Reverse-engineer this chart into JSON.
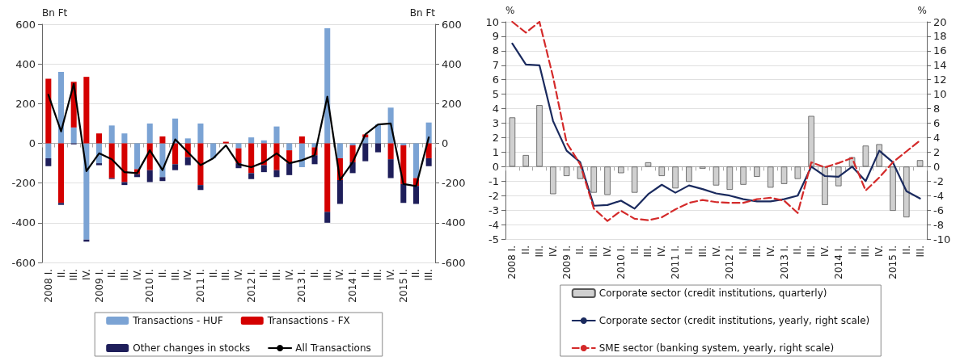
{
  "chart_data": [
    {
      "type": "bar",
      "stacked": true,
      "ylabel": "Bn Ft",
      "y2label": "Bn Ft",
      "ylim": [
        -600,
        600
      ],
      "yticks": [
        -600,
        -400,
        -200,
        0,
        200,
        400,
        600
      ],
      "y2lim": [
        -600,
        600
      ],
      "y2ticks": [
        -600,
        -400,
        -200,
        0,
        200,
        400,
        600
      ],
      "grid": "y",
      "legend": "bottom",
      "marker": "none",
      "categories": [
        "2008 I.",
        "II.",
        "III.",
        "IV.",
        "2009 I.",
        "II.",
        "III.",
        "IV.",
        "2010 I.",
        "II.",
        "III.",
        "IV.",
        "2011 I.",
        "II.",
        "III.",
        "IV.",
        "2012 I.",
        "II.",
        "III.",
        "IV.",
        "2013 I.",
        "II.",
        "III.",
        "IV.",
        "2014 I.",
        "II.",
        "III.",
        "IV.",
        "2015 I.",
        "II.",
        "III."
      ],
      "series": [
        {
          "name": "Transactions - HUF",
          "color": "#7ba3d4",
          "values": [
            -75,
            360,
            80,
            -485,
            -100,
            90,
            50,
            -130,
            100,
            -170,
            125,
            25,
            100,
            -75,
            0,
            -25,
            30,
            15,
            85,
            -35,
            -120,
            -20,
            580,
            -75,
            -10,
            30,
            95,
            180,
            -10,
            -175,
            105
          ]
        },
        {
          "name": "Transactions - FX",
          "color": "#d40000",
          "values": [
            325,
            -300,
            230,
            335,
            50,
            -175,
            -195,
            -25,
            -135,
            35,
            -105,
            -70,
            -210,
            0,
            8,
            -75,
            -150,
            -110,
            -135,
            -65,
            35,
            -40,
            -345,
            -110,
            -85,
            15,
            0,
            -80,
            -195,
            -40,
            -75
          ]
        },
        {
          "name": "Other changes in stocks",
          "color": "#1e1e5a",
          "values": [
            -40,
            -10,
            -5,
            -10,
            -10,
            -5,
            -15,
            -15,
            -60,
            -20,
            -30,
            -40,
            -25,
            null,
            0,
            -25,
            -30,
            -35,
            -35,
            -60,
            0,
            -45,
            -55,
            -120,
            -55,
            -90,
            -45,
            -95,
            -95,
            -90,
            -40
          ]
        },
        {
          "name": "All Transactions",
          "type": "line",
          "color": "#000000",
          "values": [
            245,
            60,
            300,
            -140,
            -50,
            -80,
            -145,
            -150,
            -35,
            -135,
            20,
            -45,
            -110,
            -75,
            -10,
            -105,
            -120,
            -95,
            -50,
            -100,
            -85,
            -60,
            235,
            -185,
            -95,
            45,
            95,
            100,
            -205,
            -215,
            30
          ]
        }
      ]
    },
    {
      "type": "bar",
      "ylabel": "%",
      "y2label": "%",
      "ylim": [
        -5,
        10
      ],
      "yticks": [
        -5,
        -4,
        -3,
        -2,
        -1,
        0,
        1,
        2,
        3,
        4,
        5,
        6,
        7,
        8,
        9,
        10
      ],
      "y2lim": [
        -10,
        20
      ],
      "y2ticks": [
        -10,
        -8,
        -6,
        -4,
        -2,
        0,
        2,
        4,
        6,
        8,
        10,
        12,
        14,
        16,
        18,
        20
      ],
      "grid": "y",
      "legend": "bottom",
      "marker": "none",
      "categories": [
        "2008 I.",
        "II.",
        "III.",
        "IV.",
        "2009 I.",
        "II.",
        "III.",
        "IV.",
        "2010 I.",
        "II.",
        "III.",
        "IV.",
        "2011 I.",
        "II.",
        "III.",
        "IV.",
        "2012 I.",
        "II.",
        "III.",
        "IV.",
        "2013 I.",
        "II.",
        "III.",
        "IV.",
        "2014 I.",
        "II.",
        "III.",
        "IV.",
        "2015 I.",
        "II.",
        "III."
      ],
      "series": [
        {
          "name": "Corporate sector (credit institutions, quarterly)",
          "color": "#d0d0d0",
          "values": [
            3.4,
            0.8,
            4.25,
            -1.9,
            -0.65,
            -0.85,
            -1.8,
            -1.95,
            -0.45,
            -1.8,
            0.3,
            -0.65,
            -1.5,
            -1.05,
            -0.15,
            -1.3,
            -1.6,
            -1.25,
            -0.7,
            -1.45,
            -1.2,
            -0.85,
            3.5,
            -2.65,
            -1.35,
            0.65,
            1.45,
            1.55,
            -3.05,
            -3.5,
            0.45
          ]
        },
        {
          "name": "Corporate sector (credit institutions, yearly, right scale)",
          "type": "line",
          "axis": "y2",
          "color": "#1a2a5e",
          "values": [
            17.0,
            14.1,
            14.0,
            6.3,
            2.2,
            0.6,
            -5.4,
            -5.3,
            -4.7,
            -5.8,
            -3.8,
            -2.5,
            -3.6,
            -2.6,
            -3.1,
            -3.7,
            -4.0,
            -4.5,
            -4.8,
            -4.8,
            -4.5,
            -4.0,
            0,
            -1.3,
            -1.4,
            0,
            -2.0,
            2.2,
            0.6,
            -3.4,
            -4.4
          ]
        },
        {
          "name": "SME sector (banking system, yearly, right scale)",
          "type": "line",
          "axis": "y2",
          "line_style": "dashed",
          "color": "#d42a2a",
          "values": [
            20,
            18.5,
            20,
            12.4,
            3.3,
            0.3,
            -5.8,
            -7.5,
            -6.1,
            -7.2,
            -7.4,
            -7.0,
            -5.9,
            -5.0,
            -4.6,
            -4.9,
            -5.0,
            -5.0,
            -4.5,
            -4.3,
            -4.7,
            -6.4,
            0.6,
            -0.1,
            0.5,
            1.2,
            -3.3,
            -1.5,
            0.6,
            2.1,
            3.6
          ]
        }
      ]
    }
  ]
}
